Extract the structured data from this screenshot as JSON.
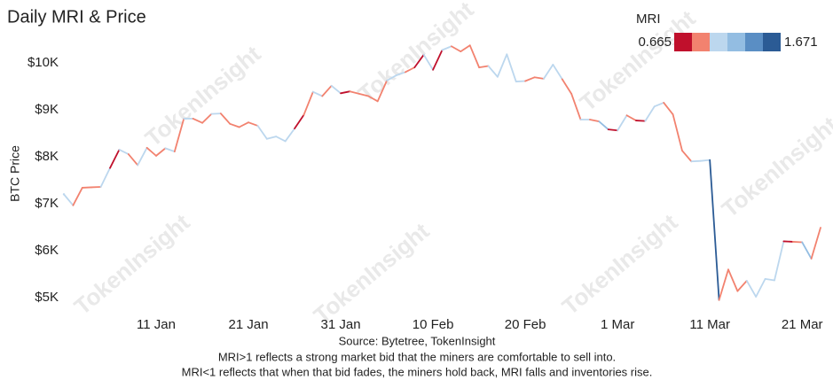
{
  "chart_data": {
    "type": "line",
    "title": "Daily MRI & Price",
    "ylabel": "BTC Price",
    "xlim": [
      1,
      83
    ],
    "ylim": [
      4700,
      10600
    ],
    "grid": false,
    "xticks": [
      {
        "value": 11,
        "label": "11 Jan"
      },
      {
        "value": 21,
        "label": "21 Jan"
      },
      {
        "value": 31,
        "label": "31 Jan"
      },
      {
        "value": 41,
        "label": "10 Feb"
      },
      {
        "value": 51,
        "label": "20 Feb"
      },
      {
        "value": 61,
        "label": "1 Mar"
      },
      {
        "value": 71,
        "label": "11 Mar"
      },
      {
        "value": 81,
        "label": "21 Mar"
      }
    ],
    "yticks": [
      {
        "value": 5000,
        "label": "$5K"
      },
      {
        "value": 6000,
        "label": "$6K"
      },
      {
        "value": 7000,
        "label": "$7K"
      },
      {
        "value": 8000,
        "label": "$8K"
      },
      {
        "value": 9000,
        "label": "$9K"
      },
      {
        "value": 10000,
        "label": "$10K"
      }
    ],
    "x": [
      1,
      2,
      3,
      4,
      5,
      6,
      7,
      8,
      9,
      10,
      11,
      12,
      13,
      14,
      15,
      16,
      17,
      18,
      19,
      20,
      21,
      22,
      23,
      24,
      25,
      26,
      27,
      28,
      29,
      30,
      31,
      32,
      33,
      34,
      35,
      36,
      37,
      38,
      39,
      40,
      41,
      42,
      43,
      44,
      45,
      46,
      47,
      48,
      49,
      50,
      51,
      52,
      53,
      54,
      55,
      56,
      57,
      58,
      59,
      60,
      61,
      62,
      63,
      64,
      65,
      66,
      67,
      68,
      69,
      70,
      71,
      72,
      73,
      74,
      75,
      76,
      77,
      78,
      79,
      80,
      81,
      82,
      83
    ],
    "series": [
      {
        "name": "BTC Price",
        "values": [
          7200,
          6965,
          7340,
          7350,
          7358,
          7760,
          8150,
          8055,
          7820,
          8190,
          8020,
          8180,
          8110,
          8810,
          8810,
          8720,
          8910,
          8920,
          8700,
          8630,
          8730,
          8660,
          8380,
          8430,
          8330,
          8600,
          8890,
          9380,
          9290,
          9510,
          9350,
          9390,
          9340,
          9290,
          9180,
          9620,
          9730,
          9800,
          9900,
          10170,
          9850,
          10270,
          10350,
          10240,
          10370,
          9900,
          9930,
          9700,
          10180,
          9600,
          9610,
          9690,
          9660,
          9960,
          9650,
          9340,
          8790,
          8790,
          8750,
          8580,
          8560,
          8880,
          8770,
          8760,
          9070,
          9150,
          8900,
          8130,
          7900,
          7910,
          7930,
          4950,
          5600,
          5140,
          5360,
          5020,
          5400,
          5370,
          6200,
          6190,
          6180,
          5830,
          6490
        ],
        "mri": [
          1.08,
          1.08,
          0.9,
          0.9,
          0.9,
          1.08,
          0.75,
          1.08,
          0.9,
          1.08,
          0.9,
          0.9,
          1.08,
          0.9,
          1.08,
          0.9,
          0.9,
          1.08,
          0.9,
          0.9,
          0.9,
          0.9,
          1.08,
          1.08,
          1.08,
          1.08,
          0.75,
          0.9,
          1.08,
          0.9,
          1.08,
          0.75,
          0.9,
          0.9,
          0.9,
          0.9,
          1.08,
          1.08,
          0.9,
          0.75,
          1.08,
          0.75,
          1.08,
          0.9,
          0.9,
          0.9,
          0.9,
          1.08,
          1.08,
          1.08,
          1.08,
          0.9,
          0.9,
          1.08,
          1.08,
          0.9,
          0.9,
          1.08,
          0.9,
          1.25,
          0.75,
          1.08,
          0.9,
          0.75,
          1.08,
          1.08,
          0.9,
          0.9,
          0.9,
          1.08,
          1.08,
          1.6,
          0.9,
          0.9,
          0.9,
          1.08,
          1.08,
          1.08,
          1.08,
          0.75,
          0.9,
          1.25,
          0.9
        ]
      }
    ],
    "colorbar": {
      "title": "MRI",
      "min": 0.665,
      "max": 1.671,
      "colors": [
        "#c0102c",
        "#f2826f",
        "#bcd7ee",
        "#93bde2",
        "#5a8ec4",
        "#2b5b95"
      ]
    },
    "watermark": "TokenInsight",
    "source": "Source: Bytetree, TokenInsight",
    "notes": [
      "MRI>1 reflects a strong market bid that the miners are comfortable to sell into.",
      "MRI<1 reflects that when that bid fades, the miners hold back, MRI falls and inventories rise."
    ]
  }
}
